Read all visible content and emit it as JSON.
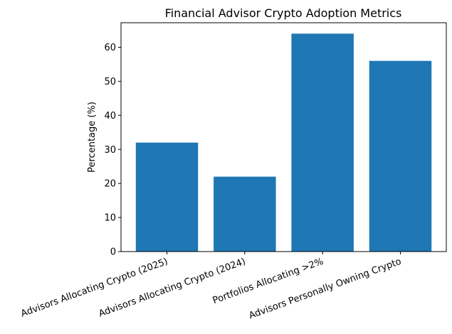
{
  "chart_data": {
    "type": "bar",
    "title": "Financial Advisor Crypto Adoption Metrics",
    "xlabel": "",
    "ylabel": "Percentage (%)",
    "categories": [
      "Advisors Allocating Crypto (2025)",
      "Advisors Allocating Crypto (2024)",
      "Portfolios Allocating >2%",
      "Advisors Personally Owning Crypto"
    ],
    "values": [
      32,
      22,
      64,
      56
    ],
    "ylim": [
      0,
      67.2
    ],
    "yticks": [
      0,
      10,
      20,
      30,
      40,
      50,
      60
    ],
    "grid": false,
    "bar_color": "#1f77b4"
  }
}
